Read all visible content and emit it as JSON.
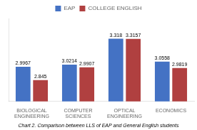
{
  "chart_data": {
    "type": "bar",
    "subtitle": "Chart 2. Comparison between LLS of EAP and General English students",
    "categories": [
      "BIOLOGICAL\nENGINEERING",
      "COMPUTER\nSCIENCES",
      "OPTICAL\nENGINEERING",
      "ECONOMICS"
    ],
    "series": [
      {
        "name": "EAP",
        "color": "#4472C4",
        "values": [
          2.9967,
          3.0214,
          3.318,
          3.0558
        ]
      },
      {
        "name": "COLLEGE ENGLISH",
        "color": "#B04040",
        "values": [
          2.845,
          2.9907,
          3.3157,
          2.9819
        ]
      }
    ],
    "ylim": [
      2.6,
      3.55
    ],
    "grid": false,
    "legend": "top",
    "data_labels": true,
    "tick_labels": "x"
  }
}
